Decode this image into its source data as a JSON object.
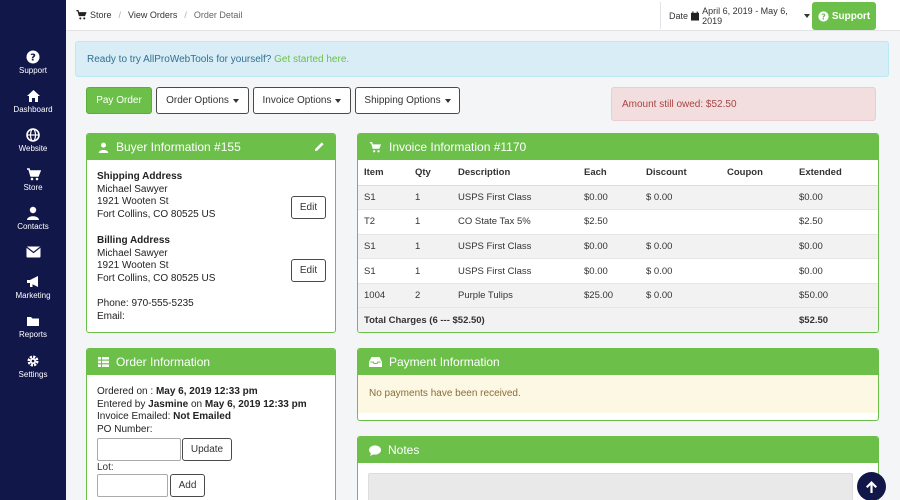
{
  "sidebar": {
    "items": [
      {
        "label": "Support",
        "icon": "question-circle-icon"
      },
      {
        "label": "Dashboard",
        "icon": "home-icon"
      },
      {
        "label": "Website",
        "icon": "globe-icon"
      },
      {
        "label": "Store",
        "icon": "cart-icon"
      },
      {
        "label": "Contacts",
        "icon": "user-icon"
      },
      {
        "label": "Marketing",
        "icon": "envelope-icon"
      },
      {
        "label": "Reports",
        "icon": "bullhorn-icon"
      },
      {
        "label": "Settings",
        "icon": "folder-icon"
      }
    ],
    "extra": {
      "label": "Settings",
      "icon": "gear-icon"
    }
  },
  "breadcrumb": {
    "store": "Store",
    "view_orders": "View Orders",
    "current": "Order Detail"
  },
  "date_range": {
    "label": "Date",
    "value": "April 6, 2019 - May 6, 2019"
  },
  "support_button": "Support",
  "promo": {
    "text": "Ready to try AllProWebTools for yourself?",
    "link": "Get started here."
  },
  "actions": {
    "pay_order": "Pay Order",
    "order_options": "Order Options",
    "invoice_options": "Invoice Options",
    "shipping_options": "Shipping Options"
  },
  "amount_owed": "Amount still owed: $52.50",
  "buyer": {
    "title": "Buyer Information #155",
    "shipping_title": "Shipping Address",
    "shipping": [
      "Michael Sawyer",
      "1921 Wooten St",
      "Fort Collins, CO 80525 US"
    ],
    "billing_title": "Billing Address",
    "billing": [
      "Michael Sawyer",
      "1921 Wooten St",
      "Fort Collins, CO 80525 US"
    ],
    "phone": "Phone: 970-555-5235",
    "email": "Email:",
    "edit_label": "Edit"
  },
  "invoice": {
    "title": "Invoice Information #1170",
    "columns": [
      "Item",
      "Qty",
      "Description",
      "Each",
      "Discount",
      "Coupon",
      "Extended"
    ],
    "rows": [
      [
        "S1",
        "1",
        "USPS First Class",
        "$0.00",
        "$ 0.00",
        "",
        "$0.00"
      ],
      [
        "T2",
        "1",
        "CO State Tax 5%",
        "$2.50",
        "",
        "",
        "$2.50"
      ],
      [
        "S1",
        "1",
        "USPS First Class",
        "$0.00",
        "$ 0.00",
        "",
        "$0.00"
      ],
      [
        "S1",
        "1",
        "USPS First Class",
        "$0.00",
        "$ 0.00",
        "",
        "$0.00"
      ],
      [
        "1004",
        "2",
        "Purple Tulips",
        "$25.00",
        "$ 0.00",
        "",
        "$50.00"
      ]
    ],
    "total_label": "Total Charges (6 --- $52.50)",
    "total_value": "$52.50"
  },
  "order": {
    "title": "Order Information",
    "ordered_on_label": "Ordered on :",
    "ordered_on": "May 6, 2019 12:33 pm",
    "entered_by_label": "Entered by",
    "entered_by": "Jasmine",
    "entered_on_label": "on",
    "entered_on": "May 6, 2019 12:33 pm",
    "emailed_label": "Invoice Emailed:",
    "emailed": "Not Emailed",
    "po_label": "PO Number:",
    "update_label": "Update",
    "lot_label": "Lot:",
    "add_label": "Add"
  },
  "payment": {
    "title": "Payment Information",
    "message": "No payments have been received."
  },
  "notes": {
    "title": "Notes"
  },
  "colors": {
    "accent": "#6cc04a",
    "sidebar": "#12174a",
    "danger": "#a94442"
  }
}
